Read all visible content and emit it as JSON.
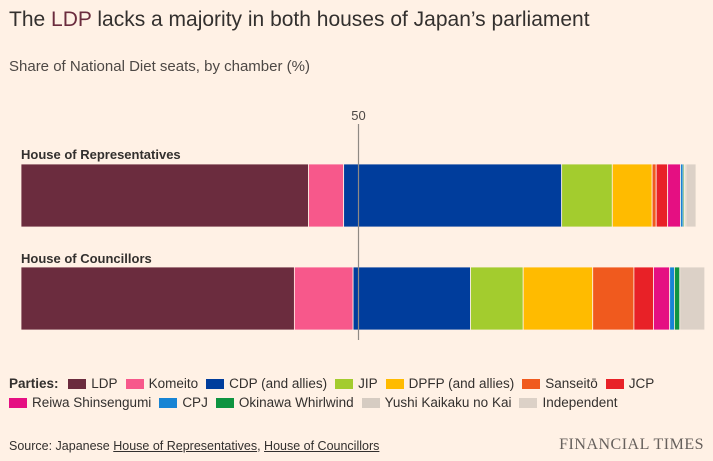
{
  "header": {
    "title_pre": "The ",
    "title_highlight": "LDP",
    "title_post": " lacks a majority in both houses of Japan’s parliament",
    "subtitle": "Share of National Diet seats, by chamber (%)"
  },
  "legend": {
    "lead": "Parties:",
    "items": [
      {
        "label": "LDP",
        "color": "#6B2C3E"
      },
      {
        "label": "Komeito",
        "color": "#F7588B"
      },
      {
        "label": "CDP (and allies)",
        "color": "#003D9C"
      },
      {
        "label": "JIP",
        "color": "#A3CC2E"
      },
      {
        "label": "DPFP (and allies)",
        "color": "#FFBB00"
      },
      {
        "label": "Sanseitō",
        "color": "#F05A1E"
      },
      {
        "label": "JCP",
        "color": "#E82127"
      },
      {
        "label": "Reiwa Shinsengumi",
        "color": "#E50F82"
      },
      {
        "label": "CPJ",
        "color": "#1784D4"
      },
      {
        "label": "Okinawa Whirlwind",
        "color": "#0E9440"
      },
      {
        "label": "Yushi Kaikaku no Kai",
        "color": "#D6CCC2"
      },
      {
        "label": "Independent",
        "color": "#DCD1C7"
      }
    ]
  },
  "chart_data": {
    "type": "bar",
    "orientation": "horizontal",
    "stacked": true,
    "xlim": [
      0,
      100
    ],
    "reference_line": {
      "value": 50,
      "label": "50"
    },
    "categories": [
      "House of Representatives",
      "House of Councillors"
    ],
    "series": [
      {
        "name": "LDP",
        "color": "#6B2C3E",
        "values": [
          42.6,
          40.5
        ]
      },
      {
        "name": "Komeito",
        "color": "#F7588B",
        "values": [
          5.2,
          8.7
        ]
      },
      {
        "name": "CDP (and allies)",
        "color": "#003D9C",
        "values": [
          32.3,
          17.4
        ]
      },
      {
        "name": "JIP",
        "color": "#A3CC2E",
        "values": [
          7.5,
          7.8
        ]
      },
      {
        "name": "DPFP (and allies)",
        "color": "#FFBB00",
        "values": [
          5.9,
          10.3
        ]
      },
      {
        "name": "Sanseitō",
        "color": "#F05A1E",
        "values": [
          0.6,
          6.1
        ]
      },
      {
        "name": "JCP",
        "color": "#E82127",
        "values": [
          1.7,
          2.9
        ]
      },
      {
        "name": "Reiwa Shinsengumi",
        "color": "#E50F82",
        "values": [
          1.9,
          2.4
        ]
      },
      {
        "name": "CPJ",
        "color": "#1784D4",
        "values": [
          0.4,
          0.7
        ]
      },
      {
        "name": "Okinawa Whirlwind",
        "color": "#0E9440",
        "values": [
          0.2,
          0.8
        ]
      },
      {
        "name": "Yushi Kaikaku no Kai",
        "color": "#D6CCC2",
        "values": [
          0.2,
          0
        ]
      },
      {
        "name": "Independent",
        "color": "#DCD1C7",
        "values": [
          1.5,
          3.7
        ]
      }
    ]
  },
  "footer": {
    "source_prefix": "Source: Japanese ",
    "source_link1": "House of Representatives",
    "source_sep": ", ",
    "source_link2": "House of Councillors",
    "brand": "FINANCIAL TIMES"
  }
}
